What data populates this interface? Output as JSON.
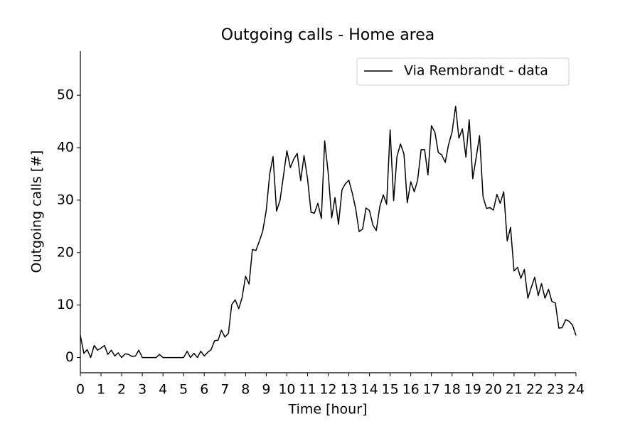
{
  "chart_data": {
    "type": "line",
    "title": "Outgoing calls - Home area",
    "xlabel": "Time [hour]",
    "ylabel": "Outgoing calls [#]",
    "x": [
      0,
      0.17,
      0.33,
      0.5,
      0.67,
      0.83,
      1,
      1.17,
      1.33,
      1.5,
      1.67,
      1.83,
      2,
      2.17,
      2.33,
      2.5,
      2.67,
      2.83,
      3,
      3.17,
      3.33,
      3.5,
      3.67,
      3.83,
      4,
      4.17,
      4.33,
      4.5,
      4.67,
      4.83,
      5,
      5.17,
      5.33,
      5.5,
      5.67,
      5.83,
      6,
      6.17,
      6.33,
      6.5,
      6.67,
      6.83,
      7,
      7.17,
      7.33,
      7.5,
      7.67,
      7.83,
      8,
      8.17,
      8.33,
      8.5,
      8.67,
      8.83,
      9,
      9.17,
      9.33,
      9.5,
      9.67,
      9.83,
      10,
      10.17,
      10.33,
      10.5,
      10.67,
      10.83,
      11,
      11.17,
      11.33,
      11.5,
      11.67,
      11.83,
      12,
      12.17,
      12.33,
      12.5,
      12.67,
      12.83,
      13,
      13.17,
      13.33,
      13.5,
      13.67,
      13.83,
      14,
      14.17,
      14.33,
      14.5,
      14.67,
      14.83,
      15,
      15.17,
      15.33,
      15.5,
      15.67,
      15.83,
      16,
      16.17,
      16.33,
      16.5,
      16.67,
      16.83,
      17,
      17.17,
      17.33,
      17.5,
      17.67,
      17.83,
      18,
      18.17,
      18.33,
      18.5,
      18.67,
      18.83,
      19,
      19.17,
      19.33,
      19.5,
      19.67,
      19.83,
      20,
      20.17,
      20.33,
      20.5,
      20.67,
      20.83,
      21,
      21.17,
      21.33,
      21.5,
      21.67,
      21.83,
      22,
      22.17,
      22.33,
      22.5,
      22.67,
      22.83,
      23,
      23.17,
      23.33,
      23.5,
      23.67,
      23.83,
      24
    ],
    "series": [
      {
        "name": "Via Rembrandt - data",
        "color": "#000000",
        "values": [
          4.2,
          0.8,
          1.5,
          0,
          2.3,
          1.4,
          1.8,
          2.3,
          0.6,
          1.4,
          0.3,
          0.9,
          0,
          0.7,
          0.6,
          0.2,
          0.3,
          1.4,
          0,
          0,
          0,
          0,
          0,
          0.6,
          0,
          0,
          0,
          0,
          0,
          0,
          0,
          1.2,
          0,
          0.8,
          0,
          1.2,
          0.3,
          1.0,
          1.5,
          3.2,
          3.3,
          5.2,
          3.9,
          4.6,
          10.1,
          11.0,
          9.3,
          11.4,
          15.5,
          14.0,
          20.6,
          20.4,
          22.2,
          24.1,
          28,
          35,
          38.3,
          27.9,
          30,
          34.5,
          39.4,
          36.2,
          37.8,
          38.9,
          33.7,
          38.5,
          34.1,
          27.7,
          27.5,
          29.4,
          26.5,
          41.3,
          35.2,
          26.6,
          30.5,
          25.4,
          32,
          33.1,
          33.8,
          31.3,
          28.4,
          24,
          24.5,
          28.5,
          28,
          25.2,
          24.2,
          28.8,
          31,
          29.2,
          43.4,
          29.9,
          38.3,
          40.7,
          38.8,
          29.5,
          33.5,
          31.6,
          33.8,
          39.6,
          39.6,
          34.8,
          44.2,
          42.9,
          39.1,
          38.6,
          37.2,
          40.6,
          43,
          47.9,
          41.8,
          43.6,
          38.2,
          45.3,
          34.1,
          38.2,
          42.3,
          30.6,
          28.4,
          28.6,
          28.1,
          31.1,
          29.4,
          31.6,
          22.2,
          24.8,
          16.5,
          17.2,
          15.1,
          16.8,
          11.3,
          13.3,
          15.3,
          11.8,
          14.1,
          11.3,
          13.0,
          10.7,
          10.4,
          5.6,
          5.7,
          7.2,
          6.9,
          6.2,
          4.2
        ]
      }
    ],
    "xlim": [
      0,
      24
    ],
    "xticks": [
      0,
      1,
      2,
      3,
      4,
      5,
      6,
      7,
      8,
      9,
      10,
      11,
      12,
      13,
      14,
      15,
      16,
      17,
      18,
      19,
      20,
      21,
      22,
      23,
      24
    ],
    "ylim": [
      -2.9,
      58.4
    ],
    "yticks": [
      0,
      10,
      20,
      30,
      40,
      50
    ],
    "legend": "upper right"
  }
}
